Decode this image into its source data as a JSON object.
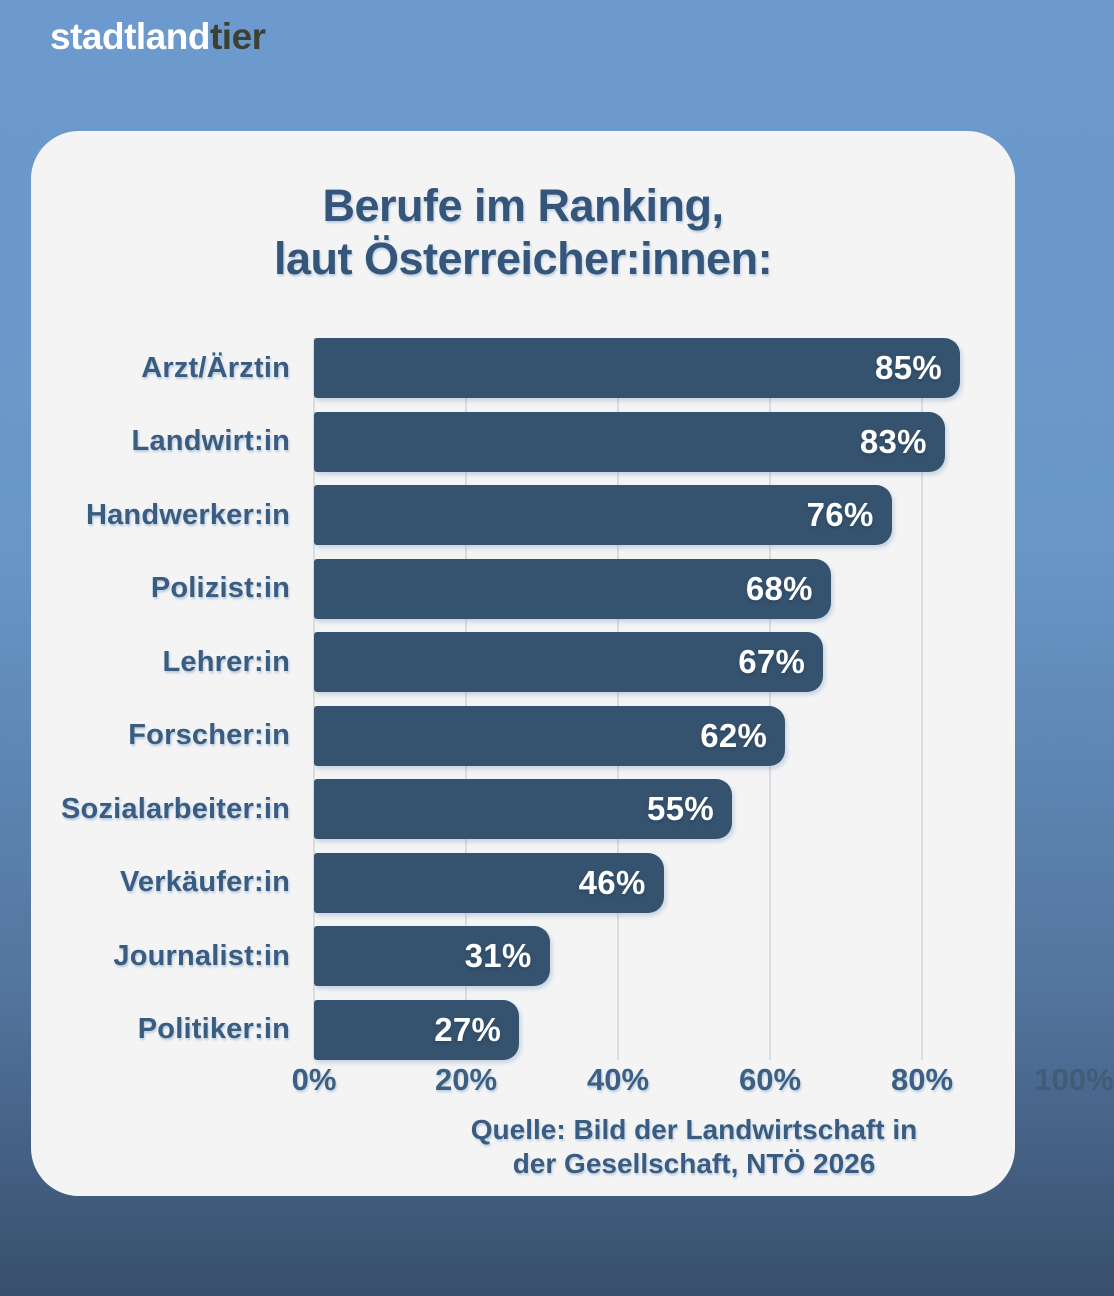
{
  "logo": {
    "part1": "stadtland",
    "part2": "tier"
  },
  "chart_data": {
    "type": "bar",
    "orientation": "horizontal",
    "title": "Berufe im Ranking, laut Österreicher:innen:",
    "title_lines": [
      "Berufe im Ranking,",
      "laut Österreicher:innen:"
    ],
    "categories": [
      "Arzt/Ärztin",
      "Landwirt:in",
      "Handwerker:in",
      "Polizist:in",
      "Lehrer:in",
      "Forscher:in",
      "Sozialarbeiter:in",
      "Verkäufer:in",
      "Journalist:in",
      "Politiker:in"
    ],
    "values": [
      85,
      83,
      76,
      68,
      67,
      62,
      55,
      46,
      31,
      27
    ],
    "unit": "%",
    "xlim": [
      0,
      100
    ],
    "x_tick_values": [
      0,
      20,
      40,
      60,
      80,
      100
    ],
    "x_tick_labels": [
      "0%",
      "20%",
      "40%",
      "60%",
      "80%",
      "100%"
    ],
    "grid": "vertical gridlines at 20% steps",
    "legend": "none",
    "bar_color": "#35536F",
    "value_label_color": "#FFFFFF",
    "source_lines": [
      "Quelle: Bild der Landwirtschaft in",
      "der Gesellschaft, NTÖ 2026"
    ]
  },
  "colors": {
    "background_top": "#6D9ACE",
    "background_bottom": "#384F6D",
    "card": "#F4F4F5",
    "bar": "#35536F",
    "text_dark_blue": "#3A5C80",
    "title": "#35567A",
    "logo_primary": "#FFFFFF",
    "logo_secondary": "#3C4134"
  }
}
